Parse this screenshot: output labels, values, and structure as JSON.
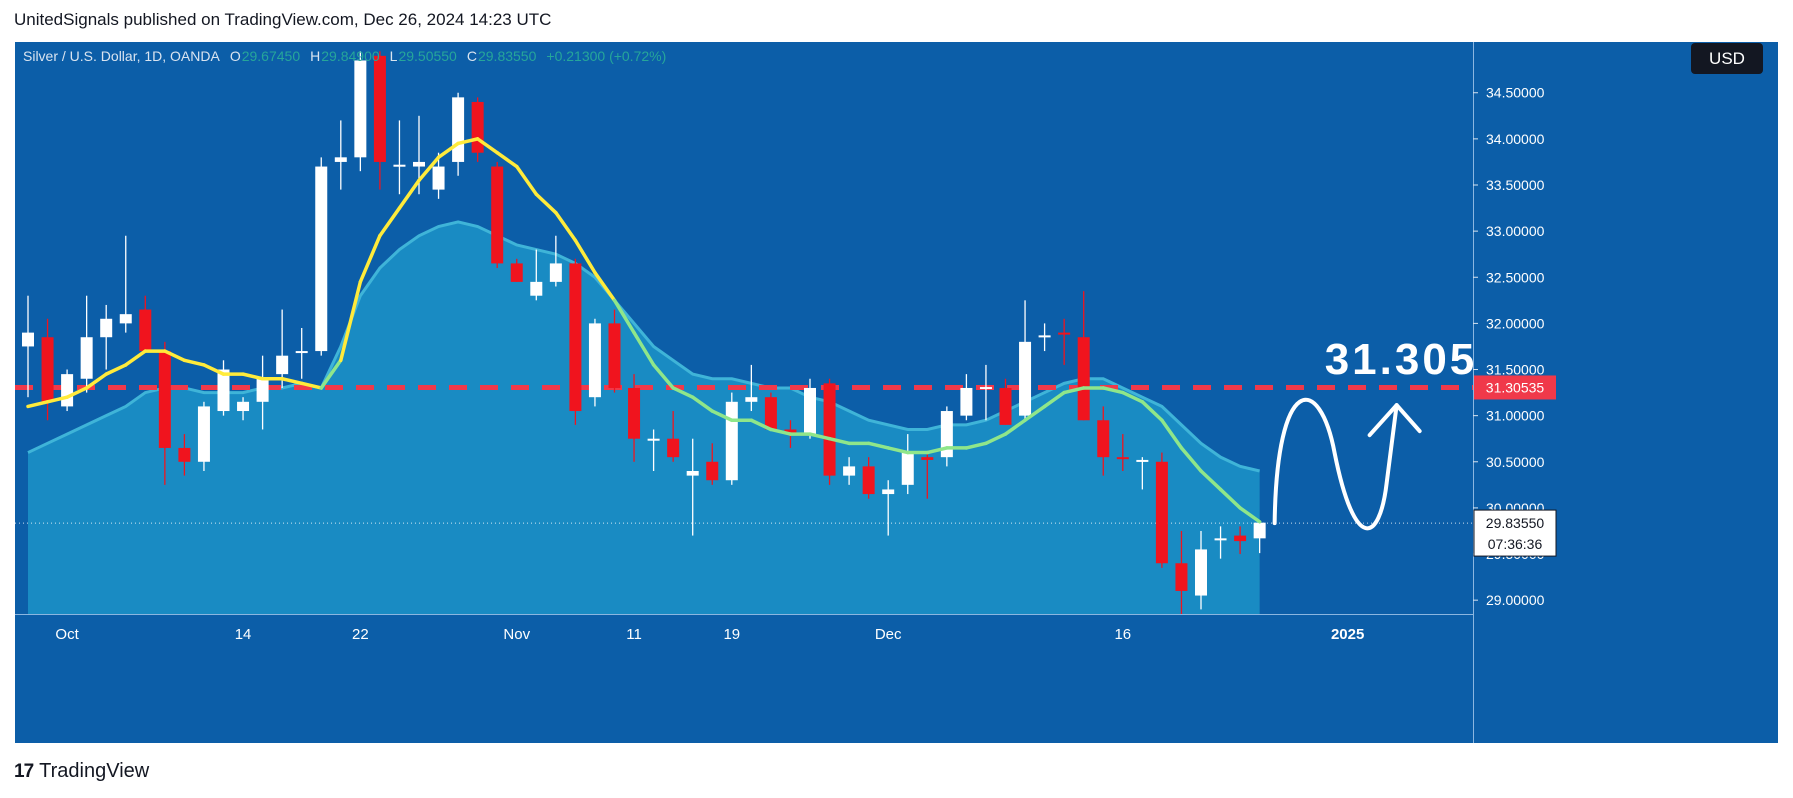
{
  "header": {
    "publish_line": "UnitedSignals published on TradingView.com, Dec 26, 2024 14:23 UTC"
  },
  "footer": {
    "brand": "TradingView",
    "logo_glyph": "17"
  },
  "colors": {
    "background": "#0c5ea8",
    "up_candle": "#ffffff",
    "down_candle": "#f0141e",
    "ema_fast": "#ffeb3b",
    "ema_fast_below": "#8fe68a",
    "ema_slow_line": "#3fb4d8",
    "ema_slow_fill": "#1a8dc4",
    "level_line": "#f0394a",
    "legend_values": "#26a69a"
  },
  "chart_data": {
    "type": "candlestick",
    "title": "Silver / U.S. Dollar, 1D, OANDA",
    "ohlc_header": {
      "o_label": "O",
      "o_value": "29.67450",
      "h_label": "H",
      "h_value": "29.84900",
      "l_label": "L",
      "l_value": "29.50550",
      "c_label": "C",
      "c_value": "29.83550",
      "change": "+0.21300 (+0.72%)"
    },
    "currency": "USD",
    "ylim": [
      28.85,
      35.05
    ],
    "y_ticks": [
      "34.50000",
      "34.00000",
      "33.50000",
      "33.00000",
      "32.50000",
      "32.00000",
      "31.50000",
      "31.00000",
      "30.50000",
      "30.00000",
      "29.50000",
      "29.00000"
    ],
    "y_tick_values": [
      34.5,
      34.0,
      33.5,
      33.0,
      32.5,
      32.0,
      31.5,
      31.0,
      30.5,
      30.0,
      29.5,
      29.0
    ],
    "x_ticks": [
      "Oct",
      "14",
      "22",
      "Nov",
      "11",
      "19",
      "Dec",
      "16",
      "2025"
    ],
    "x_tick_index": [
      2,
      11,
      17,
      25,
      31,
      36,
      44,
      56,
      67.5
    ],
    "last_price": {
      "value": 29.8355,
      "label": "29.83550",
      "countdown": "07:36:36"
    },
    "key_level": {
      "value": 31.30535,
      "label": "31.30535",
      "annotation": "31.305"
    },
    "projection": "up-down-up arrow toward 31.305",
    "candles": [
      {
        "o": 31.75,
        "h": 32.3,
        "l": 31.2,
        "c": 31.9
      },
      {
        "o": 31.85,
        "h": 32.05,
        "l": 30.95,
        "c": 31.15
      },
      {
        "o": 31.1,
        "h": 31.5,
        "l": 31.05,
        "c": 31.45
      },
      {
        "o": 31.4,
        "h": 32.3,
        "l": 31.25,
        "c": 31.85
      },
      {
        "o": 31.85,
        "h": 32.2,
        "l": 31.5,
        "c": 32.05
      },
      {
        "o": 32.0,
        "h": 32.95,
        "l": 31.9,
        "c": 32.1
      },
      {
        "o": 32.15,
        "h": 32.3,
        "l": 31.7,
        "c": 31.7
      },
      {
        "o": 31.7,
        "h": 31.8,
        "l": 30.25,
        "c": 30.65
      },
      {
        "o": 30.65,
        "h": 30.8,
        "l": 30.35,
        "c": 30.5
      },
      {
        "o": 30.5,
        "h": 31.15,
        "l": 30.4,
        "c": 31.1
      },
      {
        "o": 31.05,
        "h": 31.6,
        "l": 31.0,
        "c": 31.5
      },
      {
        "o": 31.05,
        "h": 31.2,
        "l": 30.95,
        "c": 31.15
      },
      {
        "o": 31.15,
        "h": 31.65,
        "l": 30.85,
        "c": 31.4
      },
      {
        "o": 31.45,
        "h": 32.15,
        "l": 31.3,
        "c": 31.65
      },
      {
        "o": 31.7,
        "h": 31.95,
        "l": 31.4,
        "c": 31.7
      },
      {
        "o": 31.7,
        "h": 33.8,
        "l": 31.65,
        "c": 33.7
      },
      {
        "o": 33.75,
        "h": 34.2,
        "l": 33.45,
        "c": 33.8
      },
      {
        "o": 33.8,
        "h": 34.95,
        "l": 33.65,
        "c": 34.85
      },
      {
        "o": 34.9,
        "h": 34.95,
        "l": 33.45,
        "c": 33.75
      },
      {
        "o": 33.7,
        "h": 34.2,
        "l": 33.4,
        "c": 33.72
      },
      {
        "o": 33.7,
        "h": 34.25,
        "l": 33.4,
        "c": 33.75
      },
      {
        "o": 33.45,
        "h": 33.85,
        "l": 33.35,
        "c": 33.7
      },
      {
        "o": 33.75,
        "h": 34.5,
        "l": 33.6,
        "c": 34.45
      },
      {
        "o": 34.4,
        "h": 34.45,
        "l": 33.75,
        "c": 33.85
      },
      {
        "o": 33.7,
        "h": 33.75,
        "l": 32.6,
        "c": 32.65
      },
      {
        "o": 32.65,
        "h": 32.7,
        "l": 32.45,
        "c": 32.45
      },
      {
        "o": 32.3,
        "h": 32.8,
        "l": 32.25,
        "c": 32.45
      },
      {
        "o": 32.45,
        "h": 32.95,
        "l": 32.4,
        "c": 32.65
      },
      {
        "o": 32.65,
        "h": 32.7,
        "l": 30.9,
        "c": 31.05
      },
      {
        "o": 31.2,
        "h": 32.05,
        "l": 31.1,
        "c": 32.0
      },
      {
        "o": 32.0,
        "h": 32.15,
        "l": 31.25,
        "c": 31.3
      },
      {
        "o": 31.3,
        "h": 31.45,
        "l": 30.5,
        "c": 30.75
      },
      {
        "o": 30.75,
        "h": 30.85,
        "l": 30.4,
        "c": 30.75
      },
      {
        "o": 30.75,
        "h": 31.05,
        "l": 30.5,
        "c": 30.55
      },
      {
        "o": 30.35,
        "h": 30.75,
        "l": 29.7,
        "c": 30.4
      },
      {
        "o": 30.5,
        "h": 30.7,
        "l": 30.25,
        "c": 30.3
      },
      {
        "o": 30.3,
        "h": 31.25,
        "l": 30.25,
        "c": 31.15
      },
      {
        "o": 31.15,
        "h": 31.55,
        "l": 31.05,
        "c": 31.2
      },
      {
        "o": 31.2,
        "h": 31.25,
        "l": 30.9,
        "c": 30.85
      },
      {
        "o": 30.85,
        "h": 30.95,
        "l": 30.65,
        "c": 30.8
      },
      {
        "o": 30.8,
        "h": 31.4,
        "l": 30.75,
        "c": 31.3
      },
      {
        "o": 31.35,
        "h": 31.4,
        "l": 30.25,
        "c": 30.35
      },
      {
        "o": 30.35,
        "h": 30.55,
        "l": 30.25,
        "c": 30.45
      },
      {
        "o": 30.45,
        "h": 30.55,
        "l": 30.1,
        "c": 30.15
      },
      {
        "o": 30.15,
        "h": 30.3,
        "l": 29.7,
        "c": 30.2
      },
      {
        "o": 30.25,
        "h": 30.8,
        "l": 30.15,
        "c": 30.6
      },
      {
        "o": 30.55,
        "h": 30.6,
        "l": 30.1,
        "c": 30.52
      },
      {
        "o": 30.55,
        "h": 31.1,
        "l": 30.45,
        "c": 31.05
      },
      {
        "o": 31.0,
        "h": 31.45,
        "l": 30.95,
        "c": 31.3
      },
      {
        "o": 31.3,
        "h": 31.55,
        "l": 30.95,
        "c": 31.31
      },
      {
        "o": 31.3,
        "h": 31.4,
        "l": 30.9,
        "c": 30.9
      },
      {
        "o": 31.0,
        "h": 32.25,
        "l": 30.95,
        "c": 31.8
      },
      {
        "o": 31.85,
        "h": 32.0,
        "l": 31.7,
        "c": 31.87
      },
      {
        "o": 31.9,
        "h": 32.05,
        "l": 31.55,
        "c": 31.88
      },
      {
        "o": 31.85,
        "h": 32.35,
        "l": 30.95,
        "c": 30.95
      },
      {
        "o": 30.95,
        "h": 31.1,
        "l": 30.35,
        "c": 30.55
      },
      {
        "o": 30.55,
        "h": 30.8,
        "l": 30.4,
        "c": 30.53
      },
      {
        "o": 30.5,
        "h": 30.55,
        "l": 30.2,
        "c": 30.52
      },
      {
        "o": 30.5,
        "h": 30.6,
        "l": 29.35,
        "c": 29.4
      },
      {
        "o": 29.4,
        "h": 29.75,
        "l": 28.85,
        "c": 29.1
      },
      {
        "o": 29.05,
        "h": 29.75,
        "l": 28.9,
        "c": 29.55
      },
      {
        "o": 29.65,
        "h": 29.8,
        "l": 29.45,
        "c": 29.67
      },
      {
        "o": 29.7,
        "h": 29.8,
        "l": 29.5,
        "c": 29.64
      },
      {
        "o": 29.67,
        "h": 29.85,
        "l": 29.51,
        "c": 29.84
      }
    ],
    "ema_fast": [
      31.1,
      31.15,
      31.2,
      31.3,
      31.45,
      31.55,
      31.7,
      31.7,
      31.6,
      31.55,
      31.45,
      31.45,
      31.4,
      31.4,
      31.35,
      31.3,
      31.6,
      32.45,
      32.95,
      33.25,
      33.55,
      33.8,
      33.95,
      34.0,
      33.85,
      33.7,
      33.4,
      33.2,
      32.9,
      32.55,
      32.25,
      31.9,
      31.55,
      31.3,
      31.2,
      31.05,
      30.95,
      30.95,
      30.85,
      30.8,
      30.8,
      30.75,
      30.7,
      30.7,
      30.65,
      30.6,
      30.6,
      30.65,
      30.65,
      30.7,
      30.8,
      30.95,
      31.1,
      31.25,
      31.3,
      31.3,
      31.25,
      31.15,
      30.95,
      30.65,
      30.4,
      30.2,
      30.0,
      29.85
    ],
    "ema_slow": [
      30.6,
      30.7,
      30.8,
      30.9,
      31.0,
      31.1,
      31.25,
      31.3,
      31.3,
      31.25,
      31.25,
      31.25,
      31.3,
      31.3,
      31.35,
      31.3,
      31.75,
      32.3,
      32.6,
      32.8,
      32.95,
      33.05,
      33.1,
      33.05,
      32.95,
      32.85,
      32.8,
      32.75,
      32.65,
      32.5,
      32.25,
      32.0,
      31.75,
      31.6,
      31.45,
      31.4,
      31.4,
      31.35,
      31.3,
      31.3,
      31.2,
      31.15,
      31.05,
      30.95,
      30.9,
      30.85,
      30.85,
      30.9,
      30.9,
      30.95,
      31.05,
      31.15,
      31.25,
      31.35,
      31.4,
      31.4,
      31.3,
      31.2,
      31.1,
      30.9,
      30.7,
      30.55,
      30.45,
      30.4
    ]
  }
}
